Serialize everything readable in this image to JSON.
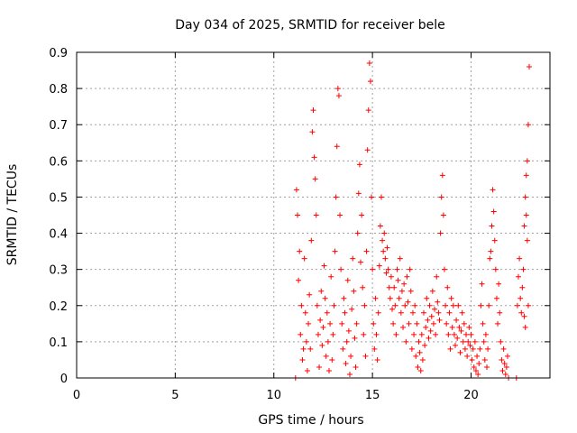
{
  "chart_data": {
    "type": "scatter",
    "title": "Day 034 of 2025, SRMTID for receiver bele",
    "xlabel": "GPS time / hours",
    "ylabel": "SRMTID / TECUs",
    "xlim": [
      0,
      24
    ],
    "ylim": [
      0,
      0.9
    ],
    "xticks": [
      "0",
      "5",
      "10",
      "15",
      "20"
    ],
    "yticks": [
      "0",
      "0.1",
      "0.2",
      "0.3",
      "0.4",
      "0.5",
      "0.6",
      "0.7",
      "0.8",
      "0.9"
    ],
    "grid": true,
    "marker": "+",
    "color": "#ff0000",
    "series": [
      {
        "name": "SRMTID",
        "points": [
          [
            11.1,
            0.0
          ],
          [
            11.15,
            0.52
          ],
          [
            11.2,
            0.45
          ],
          [
            11.25,
            0.27
          ],
          [
            11.3,
            0.35
          ],
          [
            11.35,
            0.12
          ],
          [
            11.4,
            0.2
          ],
          [
            11.45,
            0.05
          ],
          [
            11.5,
            0.08
          ],
          [
            11.55,
            0.33
          ],
          [
            11.6,
            0.18
          ],
          [
            11.65,
            0.1
          ],
          [
            11.7,
            0.02
          ],
          [
            11.75,
            0.15
          ],
          [
            11.8,
            0.23
          ],
          [
            11.85,
            0.08
          ],
          [
            11.9,
            0.38
          ],
          [
            11.95,
            0.68
          ],
          [
            12.0,
            0.74
          ],
          [
            12.05,
            0.61
          ],
          [
            12.1,
            0.55
          ],
          [
            12.15,
            0.45
          ],
          [
            12.2,
            0.2
          ],
          [
            12.25,
            0.12
          ],
          [
            12.3,
            0.03
          ],
          [
            12.35,
            0.16
          ],
          [
            12.4,
            0.24
          ],
          [
            12.45,
            0.09
          ],
          [
            12.5,
            0.14
          ],
          [
            12.55,
            0.31
          ],
          [
            12.6,
            0.22
          ],
          [
            12.65,
            0.06
          ],
          [
            12.7,
            0.18
          ],
          [
            12.75,
            0.1
          ],
          [
            12.8,
            0.02
          ],
          [
            12.85,
            0.15
          ],
          [
            12.9,
            0.28
          ],
          [
            12.95,
            0.05
          ],
          [
            13.0,
            0.12
          ],
          [
            13.05,
            0.2
          ],
          [
            13.1,
            0.35
          ],
          [
            13.15,
            0.5
          ],
          [
            13.2,
            0.64
          ],
          [
            13.25,
            0.8
          ],
          [
            13.3,
            0.78
          ],
          [
            13.35,
            0.45
          ],
          [
            13.4,
            0.3
          ],
          [
            13.45,
            0.15
          ],
          [
            13.5,
            0.08
          ],
          [
            13.55,
            0.22
          ],
          [
            13.6,
            0.18
          ],
          [
            13.65,
            0.04
          ],
          [
            13.7,
            0.1
          ],
          [
            13.75,
            0.27
          ],
          [
            13.8,
            0.13
          ],
          [
            13.85,
            0.01
          ],
          [
            13.9,
            0.06
          ],
          [
            13.95,
            0.19
          ],
          [
            14.0,
            0.33
          ],
          [
            14.05,
            0.24
          ],
          [
            14.1,
            0.11
          ],
          [
            14.15,
            0.03
          ],
          [
            14.2,
            0.15
          ],
          [
            14.25,
            0.4
          ],
          [
            14.3,
            0.51
          ],
          [
            14.35,
            0.59
          ],
          [
            14.4,
            0.32
          ],
          [
            14.45,
            0.45
          ],
          [
            14.5,
            0.25
          ],
          [
            14.55,
            0.12
          ],
          [
            14.6,
            0.2
          ],
          [
            14.65,
            0.06
          ],
          [
            14.7,
            0.35
          ],
          [
            14.75,
            0.63
          ],
          [
            14.8,
            0.74
          ],
          [
            14.85,
            0.87
          ],
          [
            14.9,
            0.82
          ],
          [
            14.95,
            0.5
          ],
          [
            15.0,
            0.3
          ],
          [
            15.05,
            0.15
          ],
          [
            15.1,
            0.08
          ],
          [
            15.15,
            0.22
          ],
          [
            15.2,
            0.12
          ],
          [
            15.25,
            0.05
          ],
          [
            15.3,
            0.18
          ],
          [
            15.35,
            0.31
          ],
          [
            15.4,
            0.42
          ],
          [
            15.45,
            0.5
          ],
          [
            15.5,
            0.38
          ],
          [
            15.55,
            0.35
          ],
          [
            15.6,
            0.4
          ],
          [
            15.65,
            0.33
          ],
          [
            15.7,
            0.29
          ],
          [
            15.75,
            0.36
          ],
          [
            15.8,
            0.3
          ],
          [
            15.85,
            0.25
          ],
          [
            15.9,
            0.22
          ],
          [
            15.95,
            0.28
          ],
          [
            16.0,
            0.19
          ],
          [
            16.05,
            0.15
          ],
          [
            16.1,
            0.25
          ],
          [
            16.15,
            0.2
          ],
          [
            16.2,
            0.12
          ],
          [
            16.25,
            0.3
          ],
          [
            16.3,
            0.27
          ],
          [
            16.35,
            0.22
          ],
          [
            16.4,
            0.33
          ],
          [
            16.45,
            0.18
          ],
          [
            16.5,
            0.24
          ],
          [
            16.55,
            0.14
          ],
          [
            16.6,
            0.26
          ],
          [
            16.65,
            0.2
          ],
          [
            16.7,
            0.1
          ],
          [
            16.75,
            0.28
          ],
          [
            16.8,
            0.21
          ],
          [
            16.85,
            0.15
          ],
          [
            16.9,
            0.3
          ],
          [
            16.95,
            0.24
          ],
          [
            17.0,
            0.08
          ],
          [
            17.05,
            0.18
          ],
          [
            17.1,
            0.12
          ],
          [
            17.15,
            0.2
          ],
          [
            17.2,
            0.06
          ],
          [
            17.25,
            0.15
          ],
          [
            17.3,
            0.03
          ],
          [
            17.35,
            0.1
          ],
          [
            17.4,
            0.07
          ],
          [
            17.45,
            0.02
          ],
          [
            17.5,
            0.12
          ],
          [
            17.55,
            0.05
          ],
          [
            17.6,
            0.18
          ],
          [
            17.65,
            0.09
          ],
          [
            17.7,
            0.14
          ],
          [
            17.75,
            0.22
          ],
          [
            17.8,
            0.16
          ],
          [
            17.85,
            0.11
          ],
          [
            17.9,
            0.2
          ],
          [
            17.95,
            0.13
          ],
          [
            18.0,
            0.17
          ],
          [
            18.05,
            0.24
          ],
          [
            18.1,
            0.15
          ],
          [
            18.15,
            0.19
          ],
          [
            18.2,
            0.12
          ],
          [
            18.25,
            0.28
          ],
          [
            18.3,
            0.21
          ],
          [
            18.35,
            0.18
          ],
          [
            18.4,
            0.16
          ],
          [
            18.45,
            0.4
          ],
          [
            18.5,
            0.5
          ],
          [
            18.55,
            0.56
          ],
          [
            18.6,
            0.45
          ],
          [
            18.65,
            0.3
          ],
          [
            18.7,
            0.2
          ],
          [
            18.75,
            0.15
          ],
          [
            18.8,
            0.25
          ],
          [
            18.85,
            0.12
          ],
          [
            18.9,
            0.18
          ],
          [
            18.95,
            0.08
          ],
          [
            19.0,
            0.22
          ],
          [
            19.05,
            0.14
          ],
          [
            19.1,
            0.2
          ],
          [
            19.15,
            0.12
          ],
          [
            19.2,
            0.09
          ],
          [
            19.25,
            0.16
          ],
          [
            19.3,
            0.11
          ],
          [
            19.35,
            0.2
          ],
          [
            19.4,
            0.14
          ],
          [
            19.45,
            0.07
          ],
          [
            19.5,
            0.13
          ],
          [
            19.55,
            0.18
          ],
          [
            19.6,
            0.1
          ],
          [
            19.65,
            0.15
          ],
          [
            19.7,
            0.08
          ],
          [
            19.75,
            0.12
          ],
          [
            19.8,
            0.06
          ],
          [
            19.85,
            0.1
          ],
          [
            19.9,
            0.14
          ],
          [
            19.95,
            0.09
          ],
          [
            20.0,
            0.12
          ],
          [
            20.05,
            0.05
          ],
          [
            20.1,
            0.08
          ],
          [
            20.15,
            0.03
          ],
          [
            20.2,
            0.1
          ],
          [
            20.25,
            0.02
          ],
          [
            20.3,
            0.06
          ],
          [
            20.35,
            0.01
          ],
          [
            20.4,
            0.04
          ],
          [
            20.45,
            0.08
          ],
          [
            20.5,
            0.2
          ],
          [
            20.55,
            0.26
          ],
          [
            20.6,
            0.15
          ],
          [
            20.65,
            0.1
          ],
          [
            20.7,
            0.05
          ],
          [
            20.75,
            0.12
          ],
          [
            20.8,
            0.03
          ],
          [
            20.85,
            0.08
          ],
          [
            20.9,
            0.2
          ],
          [
            20.95,
            0.33
          ],
          [
            21.0,
            0.35
          ],
          [
            21.05,
            0.42
          ],
          [
            21.1,
            0.52
          ],
          [
            21.15,
            0.46
          ],
          [
            21.2,
            0.38
          ],
          [
            21.25,
            0.3
          ],
          [
            21.3,
            0.22
          ],
          [
            21.35,
            0.15
          ],
          [
            21.4,
            0.26
          ],
          [
            21.45,
            0.18
          ],
          [
            21.5,
            0.1
          ],
          [
            21.55,
            0.05
          ],
          [
            21.6,
            0.02
          ],
          [
            21.65,
            0.08
          ],
          [
            21.7,
            0.04
          ],
          [
            21.75,
            0.01
          ],
          [
            21.8,
            0.03
          ],
          [
            21.85,
            0.06
          ],
          [
            21.9,
            0.0
          ],
          [
            22.3,
            0.0
          ],
          [
            22.35,
            0.2
          ],
          [
            22.4,
            0.28
          ],
          [
            22.45,
            0.33
          ],
          [
            22.5,
            0.22
          ],
          [
            22.55,
            0.18
          ],
          [
            22.6,
            0.25
          ],
          [
            22.65,
            0.3
          ],
          [
            22.7,
            0.42
          ],
          [
            22.75,
            0.5
          ],
          [
            22.8,
            0.56
          ],
          [
            22.85,
            0.6
          ],
          [
            22.9,
            0.7
          ],
          [
            22.95,
            0.86
          ],
          [
            22.85,
            0.38
          ],
          [
            22.8,
            0.45
          ],
          [
            22.9,
            0.2
          ],
          [
            22.75,
            0.14
          ],
          [
            22.7,
            0.17
          ]
        ]
      }
    ]
  }
}
